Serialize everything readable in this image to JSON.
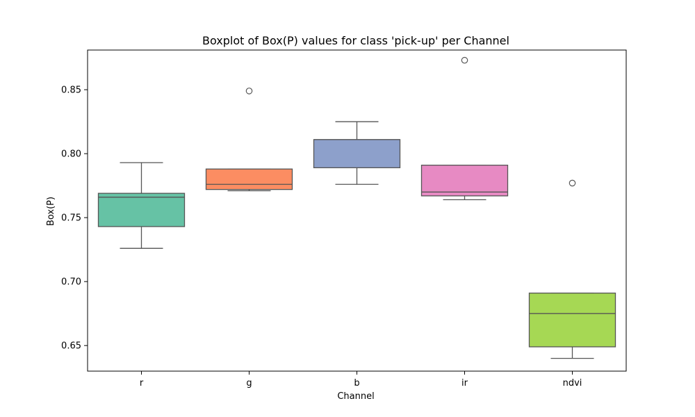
{
  "chart_data": {
    "type": "box",
    "title": "Boxplot of Box(P) values for class 'pick-up' per Channel",
    "xlabel": "Channel",
    "ylabel": "Box(P)",
    "ylim": [
      0.63,
      0.881
    ],
    "yticks": [
      0.65,
      0.7,
      0.75,
      0.8,
      0.85
    ],
    "ytick_labels": [
      "0.65",
      "0.70",
      "0.75",
      "0.80",
      "0.85"
    ],
    "grid": false,
    "categories": [
      "r",
      "g",
      "b",
      "ir",
      "ndvi"
    ],
    "boxes": [
      {
        "category": "r",
        "color": "#66c2a5",
        "whisker_low": 0.726,
        "q1": 0.743,
        "median": 0.766,
        "q3": 0.769,
        "whisker_high": 0.793,
        "outliers": []
      },
      {
        "category": "g",
        "color": "#fc8d62",
        "whisker_low": 0.771,
        "q1": 0.772,
        "median": 0.776,
        "q3": 0.788,
        "whisker_high": 0.788,
        "outliers": [
          0.849
        ]
      },
      {
        "category": "b",
        "color": "#8da0cb",
        "whisker_low": 0.776,
        "q1": 0.789,
        "median": 0.811,
        "q3": 0.811,
        "whisker_high": 0.825,
        "outliers": []
      },
      {
        "category": "ir",
        "color": "#e78ac3",
        "whisker_low": 0.764,
        "q1": 0.767,
        "median": 0.77,
        "q3": 0.791,
        "whisker_high": 0.791,
        "outliers": [
          0.873
        ]
      },
      {
        "category": "ndvi",
        "color": "#a6d854",
        "whisker_low": 0.64,
        "q1": 0.649,
        "median": 0.675,
        "q3": 0.691,
        "whisker_high": 0.691,
        "outliers": [
          0.777
        ]
      }
    ]
  }
}
